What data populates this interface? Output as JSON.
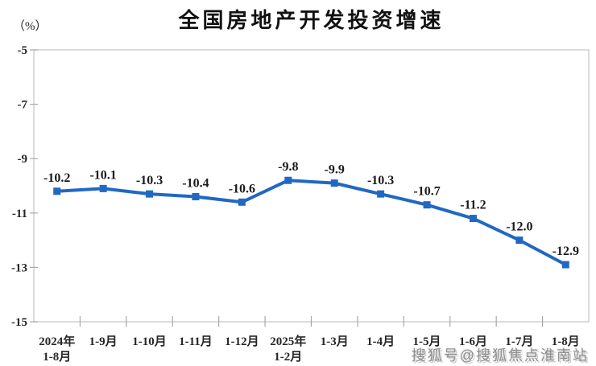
{
  "header": {
    "title": "全国房地产开发投资增速",
    "unit_label": "（%）"
  },
  "watermark": {
    "text": "搜狐号@搜狐焦点淮南站",
    "color": "#8f8f8f"
  },
  "chart_data": {
    "type": "line",
    "title": "全国房地产开发投资增速",
    "xlabel": "",
    "ylabel": "（%）",
    "categories": [
      "2024年\n1-8月",
      "1-9月",
      "1-10月",
      "1-11月",
      "1-12月",
      "2025年\n1-2月",
      "1-3月",
      "1-4月",
      "1-5月",
      "1-6月",
      "1-7月",
      "1-8月"
    ],
    "values": [
      -10.2,
      -10.1,
      -10.3,
      -10.4,
      -10.6,
      -9.8,
      -9.9,
      -10.3,
      -10.7,
      -11.2,
      -12.0,
      -12.9
    ],
    "data_labels": [
      "-10.2",
      "-10.1",
      "-10.3",
      "-10.4",
      "-10.6",
      "-9.8",
      "-9.9",
      "-10.3",
      "-10.7",
      "-11.2",
      "-12.0",
      "-12.9"
    ],
    "ylim": [
      -15,
      -5
    ],
    "yticks": [
      -5,
      -7,
      -9,
      -11,
      -13,
      -15
    ],
    "ytick_labels": [
      "-5",
      "-7",
      "-9",
      "-11",
      "-13",
      "-15"
    ],
    "grid": false,
    "legend_position": "none",
    "line_color": "#2068C4",
    "marker": "square",
    "marker_color": "#2068C4",
    "axis_color": "#c9c9c9",
    "tick_color": "#a8a8a8",
    "text_color": "#262626",
    "data_label_color": "#1a1a1a"
  }
}
